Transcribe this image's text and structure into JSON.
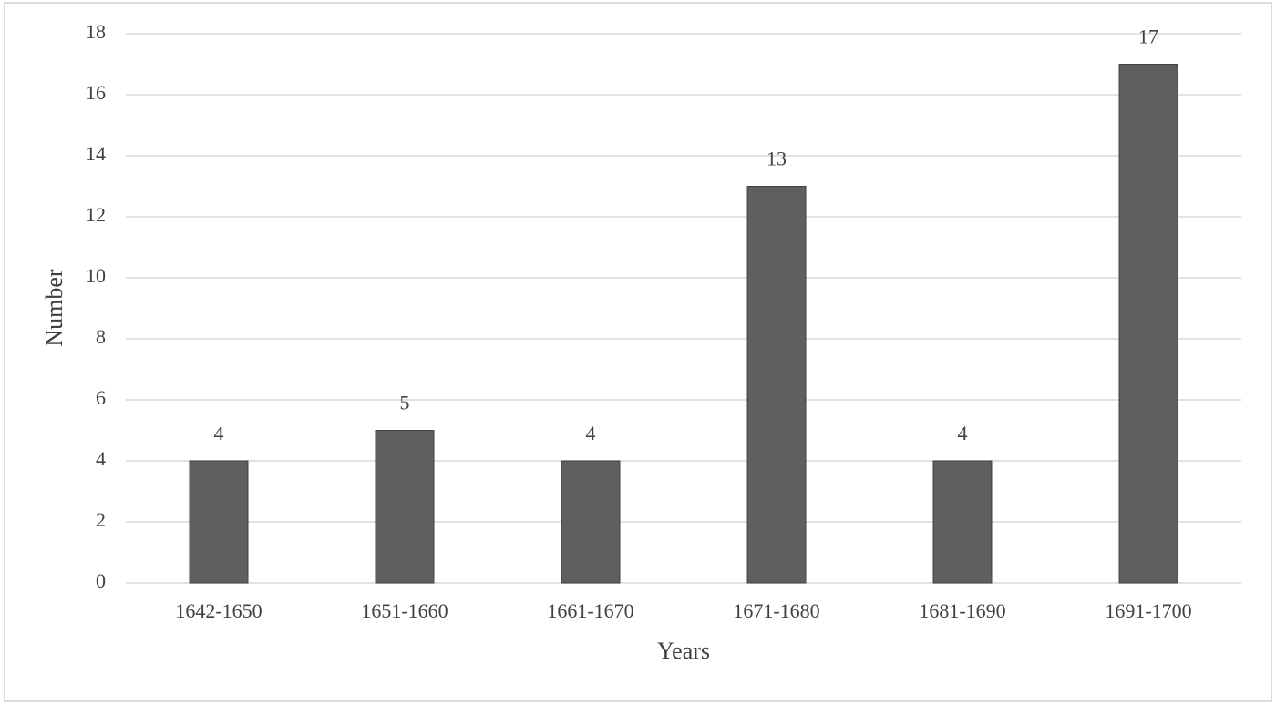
{
  "chart_data": {
    "type": "bar",
    "x_label": "Years",
    "y_label": "Number",
    "categories": [
      "1642-1650",
      "1651-1660",
      "1661-1670",
      "1671-1680",
      "1681-1690",
      "1691-1700"
    ],
    "values": [
      4,
      5,
      4,
      13,
      4,
      17
    ],
    "color": "#5f5f5f",
    "ylim": [
      0,
      18
    ],
    "yticks": [
      0,
      2,
      4,
      6,
      8,
      10,
      12,
      14,
      16,
      18
    ],
    "grid": true
  }
}
